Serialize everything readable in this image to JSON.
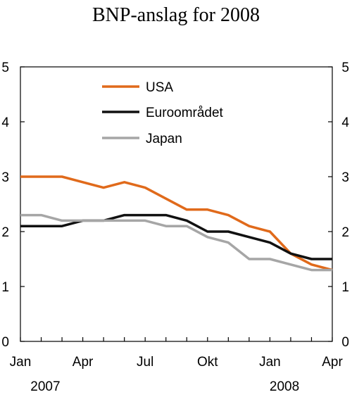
{
  "chart_data": {
    "type": "line",
    "title": "BNP-anslag for 2008",
    "xlabel": "",
    "ylabel": "",
    "ylim": [
      0,
      5
    ],
    "y_ticks": [
      "0",
      "1",
      "2",
      "3",
      "4",
      "5"
    ],
    "x_tick_labels": [
      "Jan",
      "Apr",
      "Jul",
      "Okt",
      "Jan",
      "Apr"
    ],
    "year_labels": [
      "2007",
      "2008"
    ],
    "x_range": [
      0,
      15
    ],
    "grid": false,
    "legend_position": "top-left",
    "x": [
      0,
      1,
      2,
      3,
      4,
      5,
      6,
      7,
      8,
      9,
      10,
      11,
      12,
      13,
      14,
      15
    ],
    "series": [
      {
        "name": "USA",
        "color": "#E06A1B",
        "values": [
          3.0,
          3.0,
          3.0,
          2.9,
          2.8,
          2.9,
          2.8,
          2.6,
          2.4,
          2.4,
          2.3,
          2.1,
          2.0,
          1.6,
          1.4,
          1.3
        ]
      },
      {
        "name": "Euroområdet",
        "color": "#111111",
        "values": [
          2.1,
          2.1,
          2.1,
          2.2,
          2.2,
          2.3,
          2.3,
          2.3,
          2.2,
          2.0,
          2.0,
          1.9,
          1.8,
          1.6,
          1.5,
          1.5
        ]
      },
      {
        "name": "Japan",
        "color": "#A6A6A6",
        "values": [
          2.3,
          2.3,
          2.2,
          2.2,
          2.2,
          2.2,
          2.2,
          2.1,
          2.1,
          1.9,
          1.8,
          1.5,
          1.5,
          1.4,
          1.3,
          1.3
        ]
      }
    ]
  }
}
